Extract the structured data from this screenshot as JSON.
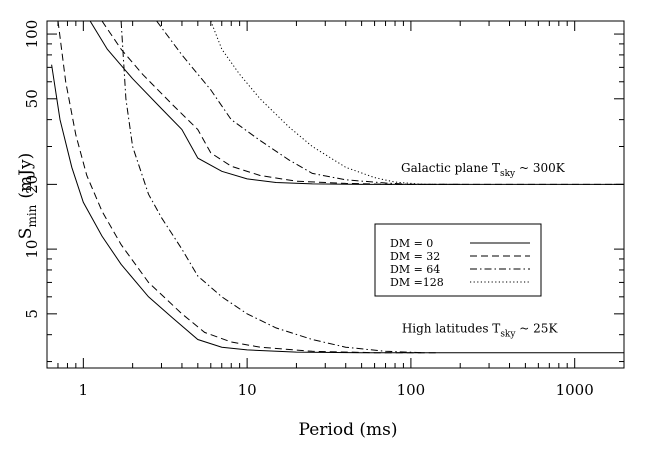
{
  "chart_data": {
    "type": "line",
    "xlabel": "Period (ms)",
    "ylabel": "S",
    "ylabel_sub": "min",
    "ylabel_unit": "(mJy)",
    "x_scale": "log",
    "y_scale": "log",
    "xlim": [
      0.6,
      2000
    ],
    "ylim": [
      2.8,
      115
    ],
    "x_ticks": [
      {
        "value": 1,
        "label": "1"
      },
      {
        "value": 10,
        "label": "10"
      },
      {
        "value": 100,
        "label": "100"
      },
      {
        "value": 1000,
        "label": "1000"
      }
    ],
    "y_ticks": [
      {
        "value": 5,
        "label": "5"
      },
      {
        "value": 10,
        "label": "10"
      },
      {
        "value": 20,
        "label": "20"
      },
      {
        "value": 50,
        "label": "50"
      },
      {
        "value": 100,
        "label": "100"
      }
    ],
    "legend": {
      "placement": "center-right",
      "entries": [
        {
          "label": "DM =   0",
          "dash": "solid"
        },
        {
          "label": "DM = 32",
          "dash": "dashed"
        },
        {
          "label": "DM = 64",
          "dash": "dashdot"
        },
        {
          "label": "DM =128",
          "dash": "dotted"
        }
      ]
    },
    "annotations": [
      {
        "text": "Galactic plane T",
        "sub": "sky",
        "tail": " ~ 300K",
        "x": 87,
        "y": 22.8
      },
      {
        "text": "High latitudes T",
        "sub": "sky",
        "tail": " ~ 25K",
        "x": 88,
        "y": 4.1
      }
    ],
    "groups": [
      {
        "name": "Galactic plane",
        "series": [
          {
            "dash": "solid",
            "points": [
              [
                1.1,
                115
              ],
              [
                1.4,
                85
              ],
              [
                2,
                62
              ],
              [
                3,
                45
              ],
              [
                4,
                36
              ],
              [
                5,
                26.5
              ],
              [
                7,
                23
              ],
              [
                10,
                21.2
              ],
              [
                15,
                20.4
              ],
              [
                25,
                20.1
              ],
              [
                50,
                20
              ],
              [
                100,
                20
              ],
              [
                300,
                20
              ],
              [
                2000,
                20
              ]
            ]
          },
          {
            "dash": "dashed",
            "points": [
              [
                1.3,
                115
              ],
              [
                1.7,
                85
              ],
              [
                2.3,
                65
              ],
              [
                3.5,
                47
              ],
              [
                5,
                36
              ],
              [
                6,
                28
              ],
              [
                8,
                24.3
              ],
              [
                12,
                22
              ],
              [
                20,
                20.7
              ],
              [
                40,
                20.2
              ],
              [
                80,
                20
              ],
              [
                300,
                20
              ],
              [
                2000,
                20
              ]
            ]
          },
          {
            "dash": "dashdot",
            "points": [
              [
                2.8,
                115
              ],
              [
                4,
                80
              ],
              [
                6,
                55
              ],
              [
                8,
                40
              ],
              [
                12,
                32
              ],
              [
                18,
                26
              ],
              [
                25,
                22.5
              ],
              [
                40,
                21
              ],
              [
                70,
                20.3
              ],
              [
                100,
                20
              ],
              [
                200,
                20
              ]
            ]
          },
          {
            "dash": "dotted",
            "points": [
              [
                6,
                115
              ],
              [
                7,
                85
              ],
              [
                9,
                65
              ],
              [
                12,
                50
              ],
              [
                18,
                37
              ],
              [
                25,
                30
              ],
              [
                40,
                24
              ],
              [
                60,
                21.5
              ],
              [
                80,
                20.5
              ],
              [
                120,
                20
              ],
              [
                180,
                20
              ]
            ]
          }
        ]
      },
      {
        "name": "High latitudes",
        "series": [
          {
            "dash": "solid",
            "points": [
              [
                0.64,
                72
              ],
              [
                0.72,
                40
              ],
              [
                0.85,
                24
              ],
              [
                1,
                16.5
              ],
              [
                1.3,
                11.5
              ],
              [
                1.7,
                8.5
              ],
              [
                2.5,
                6
              ],
              [
                3.5,
                4.8
              ],
              [
                5,
                3.8
              ],
              [
                7,
                3.5
              ],
              [
                10,
                3.4
              ],
              [
                20,
                3.32
              ],
              [
                50,
                3.3
              ],
              [
                200,
                3.3
              ],
              [
                2000,
                3.3
              ]
            ]
          },
          {
            "dash": "dashed",
            "points": [
              [
                0.7,
                115
              ],
              [
                0.78,
                60
              ],
              [
                0.9,
                34
              ],
              [
                1.05,
                22
              ],
              [
                1.3,
                15
              ],
              [
                1.7,
                10.5
              ],
              [
                2.5,
                7
              ],
              [
                4,
                5
              ],
              [
                5.5,
                4.1
              ],
              [
                8,
                3.7
              ],
              [
                12,
                3.5
              ],
              [
                25,
                3.35
              ],
              [
                60,
                3.3
              ],
              [
                150,
                3.3
              ]
            ]
          },
          {
            "dash": "dashdot",
            "points": [
              [
                1.7,
                115
              ],
              [
                1.82,
                50
              ],
              [
                2,
                30
              ],
              [
                2.5,
                18
              ],
              [
                3,
                14
              ],
              [
                4,
                10
              ],
              [
                5,
                7.5
              ],
              [
                7,
                6
              ],
              [
                10,
                5
              ],
              [
                15,
                4.3
              ],
              [
                25,
                3.8
              ],
              [
                40,
                3.5
              ],
              [
                70,
                3.35
              ],
              [
                120,
                3.3
              ]
            ]
          }
        ]
      }
    ]
  }
}
